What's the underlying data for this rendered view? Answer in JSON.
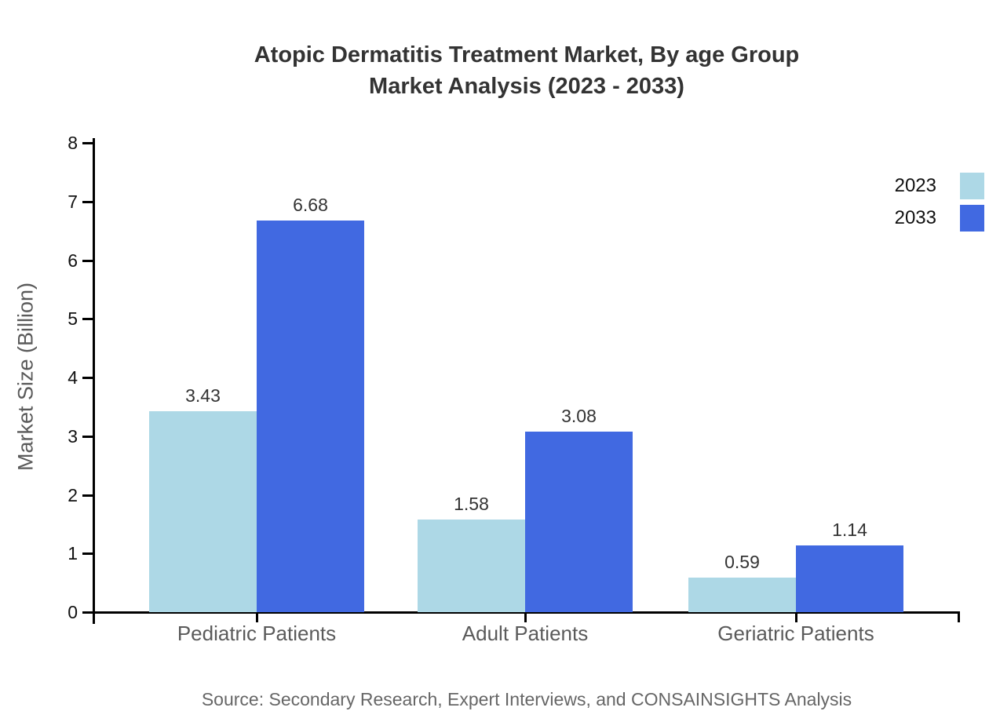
{
  "chart_data": {
    "type": "bar",
    "title": "Atopic Dermatitis Treatment Market, By age Group Market Analysis (2023 - 2033)",
    "title_lines": [
      "Atopic Dermatitis Treatment Market, By age Group",
      "Market Analysis (2023 - 2033)"
    ],
    "categories": [
      "Pediatric Patients",
      "Adult Patients",
      "Geriatric Patients"
    ],
    "series": [
      {
        "name": "2023",
        "color": "#ADD8E6",
        "values": [
          3.43,
          1.58,
          0.59
        ]
      },
      {
        "name": "2033",
        "color": "#4169E1",
        "values": [
          6.68,
          3.08,
          1.14
        ]
      }
    ],
    "xlabel": "",
    "ylabel": "Market Size (Billion)",
    "ylim": [
      0,
      8
    ],
    "yticks": [
      0,
      1,
      2,
      3,
      4,
      5,
      6,
      7,
      8
    ],
    "grid": false,
    "legend_position": "top-right-edge",
    "axis_color": "#000000",
    "text_colors": {
      "title": "#333333",
      "axis_titles": "#5a5a5a",
      "category_labels": "#5a5a5a",
      "tick_labels": "#111111",
      "value_labels": "#333333",
      "source": "#666666"
    }
  },
  "source_note": "Source: Secondary Research, Expert Interviews, and CONSAINSIGHTS Analysis"
}
